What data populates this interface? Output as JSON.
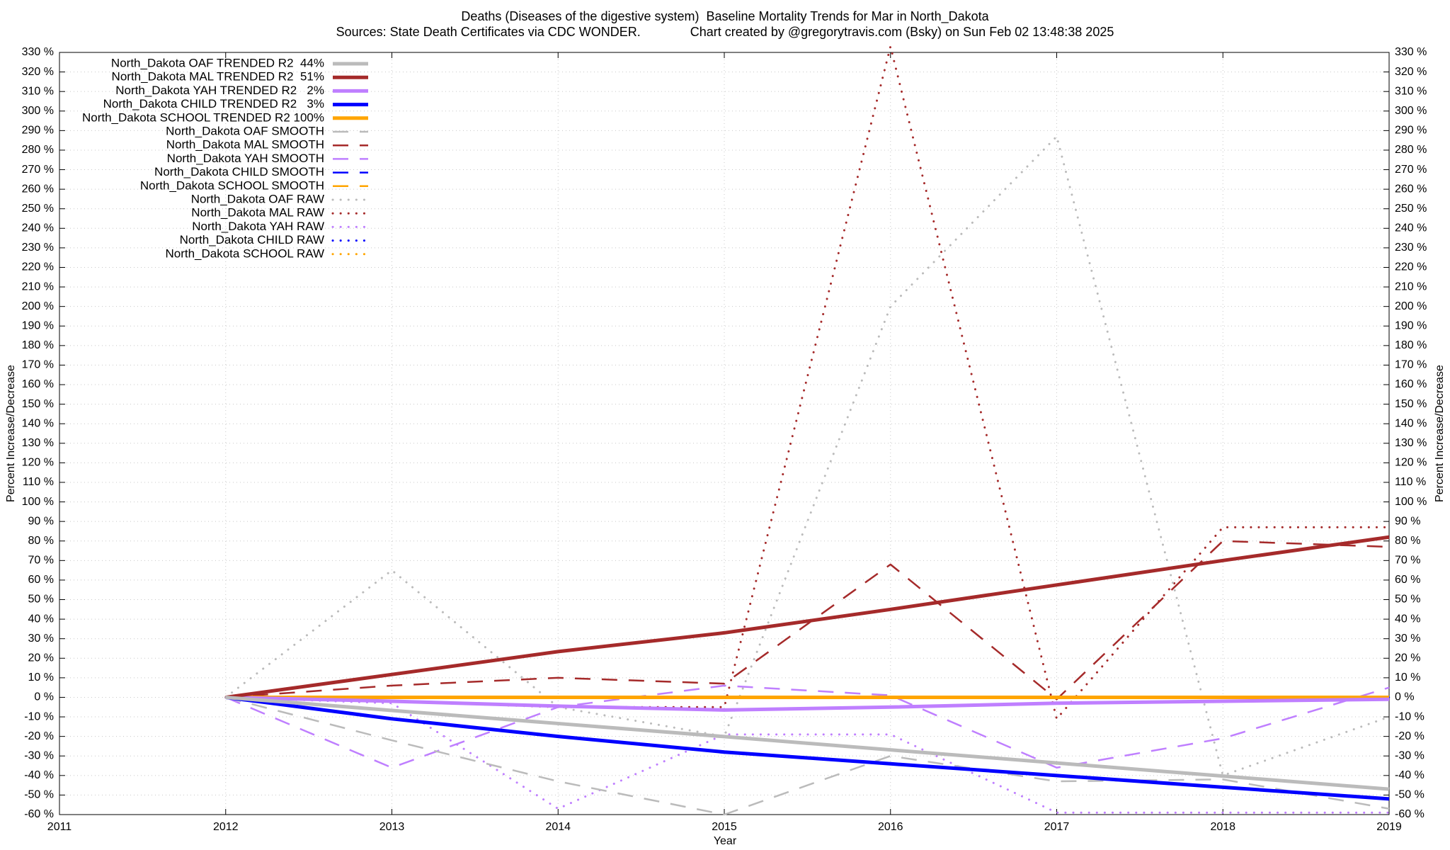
{
  "chart_data": {
    "type": "line",
    "title": "Deaths (Diseases of the digestive system)  Baseline Mortality Trends for Mar in North_Dakota",
    "subtitle": "Sources: State Death Certificates via CDC WONDER.              Chart created by @gregorytravis.com (Bsky) on Sun Feb 02 13:48:38 2025",
    "xlabel": "Year",
    "ylabel": "Percent Increase/Decrease",
    "x": [
      2012,
      2013,
      2014,
      2015,
      2016,
      2017,
      2018,
      2019
    ],
    "xlim": [
      2011,
      2019
    ],
    "xticks": [
      2011,
      2012,
      2013,
      2014,
      2015,
      2016,
      2017,
      2018,
      2019
    ],
    "ylim": [
      -60,
      330
    ],
    "yticks": [
      {
        "value": -60,
        "label": "-60 %"
      },
      {
        "value": -50,
        "label": "-50 %"
      },
      {
        "value": -40,
        "label": "-40 %"
      },
      {
        "value": -30,
        "label": "-30 %"
      },
      {
        "value": -20,
        "label": "-20 %"
      },
      {
        "value": -10,
        "label": "-10 %"
      },
      {
        "value": 0,
        "label": "0 %"
      },
      {
        "value": 10,
        "label": "10 %"
      },
      {
        "value": 20,
        "label": "20 %"
      },
      {
        "value": 30,
        "label": "30 %"
      },
      {
        "value": 40,
        "label": "40 %"
      },
      {
        "value": 50,
        "label": "50 %"
      },
      {
        "value": 60,
        "label": "60 %"
      },
      {
        "value": 70,
        "label": "70 %"
      },
      {
        "value": 80,
        "label": "80 %"
      },
      {
        "value": 90,
        "label": "90 %"
      },
      {
        "value": 100,
        "label": "100 %"
      },
      {
        "value": 110,
        "label": "110 %"
      },
      {
        "value": 120,
        "label": "120 %"
      },
      {
        "value": 130,
        "label": "130 %"
      },
      {
        "value": 140,
        "label": "140 %"
      },
      {
        "value": 150,
        "label": "150 %"
      },
      {
        "value": 160,
        "label": "160 %"
      },
      {
        "value": 170,
        "label": "170 %"
      },
      {
        "value": 180,
        "label": "180 %"
      },
      {
        "value": 190,
        "label": "190 %"
      },
      {
        "value": 200,
        "label": "200 %"
      },
      {
        "value": 210,
        "label": "210 %"
      },
      {
        "value": 220,
        "label": "220 %"
      },
      {
        "value": 230,
        "label": "230 %"
      },
      {
        "value": 240,
        "label": "240 %"
      },
      {
        "value": 250,
        "label": "250 %"
      },
      {
        "value": 260,
        "label": "260 %"
      },
      {
        "value": 270,
        "label": "270 %"
      },
      {
        "value": 280,
        "label": "280 %"
      },
      {
        "value": 290,
        "label": "290 %"
      },
      {
        "value": 300,
        "label": "300 %"
      },
      {
        "value": 310,
        "label": "310 %"
      },
      {
        "value": 320,
        "label": "320 %"
      },
      {
        "value": 330,
        "label": "330 %"
      }
    ],
    "grid": true,
    "legend": "top-left",
    "series": [
      {
        "name": "North_Dakota OAF TRENDED R2  44%",
        "color": "#bbbbbb",
        "dash": "solid",
        "values": [
          0,
          -6.7,
          -13.4,
          -20.1,
          -26.9,
          -33.6,
          -40.3,
          -47
        ]
      },
      {
        "name": "North_Dakota MAL TRENDED R2  51%",
        "color": "#a52a2a",
        "dash": "solid",
        "values": [
          0,
          11.7,
          23.4,
          33,
          45,
          57.5,
          70,
          82
        ]
      },
      {
        "name": "North_Dakota YAH TRENDED R2   2%",
        "color": "#bf7fff",
        "dash": "solid",
        "values": [
          0,
          -2,
          -4.5,
          -6.5,
          -5,
          -3,
          -2,
          -1
        ]
      },
      {
        "name": "North_Dakota CHILD TRENDED R2   3%",
        "color": "#0000ff",
        "dash": "solid",
        "values": [
          0,
          -11,
          -20,
          -28,
          -34,
          -40,
          -46,
          -52
        ]
      },
      {
        "name": "North_Dakota SCHOOL TRENDED R2 100%",
        "color": "#ffa500",
        "dash": "solid",
        "values": [
          0,
          0,
          0,
          0,
          0,
          0,
          0,
          0
        ]
      },
      {
        "name": "North_Dakota OAF SMOOTH",
        "color": "#bbbbbb",
        "dash": "dashed",
        "values": [
          0,
          -22,
          -43,
          -60,
          -30,
          -43,
          -42,
          -57
        ]
      },
      {
        "name": "North_Dakota MAL SMOOTH",
        "color": "#a52a2a",
        "dash": "dashed",
        "values": [
          0,
          6,
          10,
          7,
          68,
          -1,
          80,
          77
        ]
      },
      {
        "name": "North_Dakota YAH SMOOTH",
        "color": "#bf7fff",
        "dash": "dashed",
        "values": [
          0,
          -36,
          -5,
          6,
          1,
          -36,
          -21,
          5
        ]
      },
      {
        "name": "North_Dakota CHILD SMOOTH",
        "color": "#0000ff",
        "dash": "dashed",
        "values": [
          0,
          0,
          0,
          0,
          0,
          0,
          0,
          0
        ]
      },
      {
        "name": "North_Dakota SCHOOL SMOOTH",
        "color": "#ffa500",
        "dash": "dashed",
        "values": [
          0,
          0,
          0,
          0,
          0,
          0,
          0,
          0
        ]
      },
      {
        "name": "North_Dakota OAF RAW",
        "color": "#bbbbbb",
        "dash": "dotted",
        "values": [
          0,
          65,
          -5,
          -20,
          200,
          287,
          -40,
          -10
        ]
      },
      {
        "name": "North_Dakota MAL RAW",
        "color": "#a52a2a",
        "dash": "dotted",
        "values": [
          0,
          -2,
          -5,
          -5,
          333,
          -11,
          87,
          87
        ]
      },
      {
        "name": "North_Dakota YAH RAW",
        "color": "#bf7fff",
        "dash": "dotted",
        "values": [
          0,
          -3,
          -57,
          -19,
          -19,
          -59,
          -59,
          -59
        ]
      },
      {
        "name": "North_Dakota CHILD RAW",
        "color": "#0000ff",
        "dash": "dotted",
        "values": [
          0,
          0,
          0,
          0,
          0,
          0,
          0,
          0
        ]
      },
      {
        "name": "North_Dakota SCHOOL RAW",
        "color": "#ffa500",
        "dash": "dotted",
        "values": [
          0,
          0,
          0,
          0,
          0,
          0,
          0,
          0
        ]
      }
    ]
  }
}
